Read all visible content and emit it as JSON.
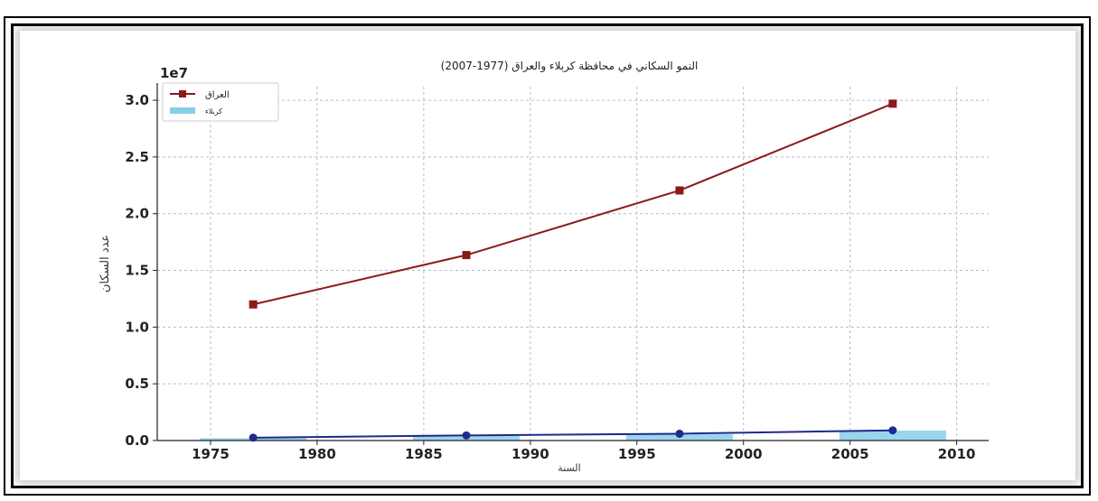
{
  "caption": "",
  "chart_data": {
    "type": "line",
    "title": "النمو السكاني في محافظة كربلاء والعراق (1977-2007)",
    "xlabel": "السنة",
    "ylabel": "عدد السكان",
    "y_multiplier_label": "1e7",
    "x_ticks": [
      "1975",
      "1980",
      "1985",
      "1990",
      "1995",
      "2000",
      "2005",
      "2010"
    ],
    "y_ticks": [
      "0.0",
      "0.5",
      "1.0",
      "1.5",
      "2.0",
      "2.5",
      "3.0"
    ],
    "xlim": [
      1972.5,
      2011.5
    ],
    "ylim": [
      0,
      31200000
    ],
    "grid": true,
    "legend_position": "top-left",
    "series": [
      {
        "name": "العراق",
        "kind": "line",
        "marker": "square",
        "color": "#8b1a1a",
        "x": [
          1977,
          1987,
          1997,
          2007
        ],
        "y": [
          12000000,
          16350000,
          22050000,
          29700000
        ]
      },
      {
        "name": "",
        "kind": "line",
        "marker": "circle",
        "color": "#1f2a8c",
        "x": [
          1977,
          1987,
          1997,
          2007
        ],
        "y": [
          250000,
          450000,
          600000,
          900000
        ]
      },
      {
        "name": "كربلاء",
        "kind": "bar",
        "color": "#87ceeb",
        "x": [
          1977,
          1987,
          1997,
          2007
        ],
        "y": [
          200000,
          420000,
          550000,
          880000
        ],
        "bar_width_years": 5
      }
    ]
  }
}
